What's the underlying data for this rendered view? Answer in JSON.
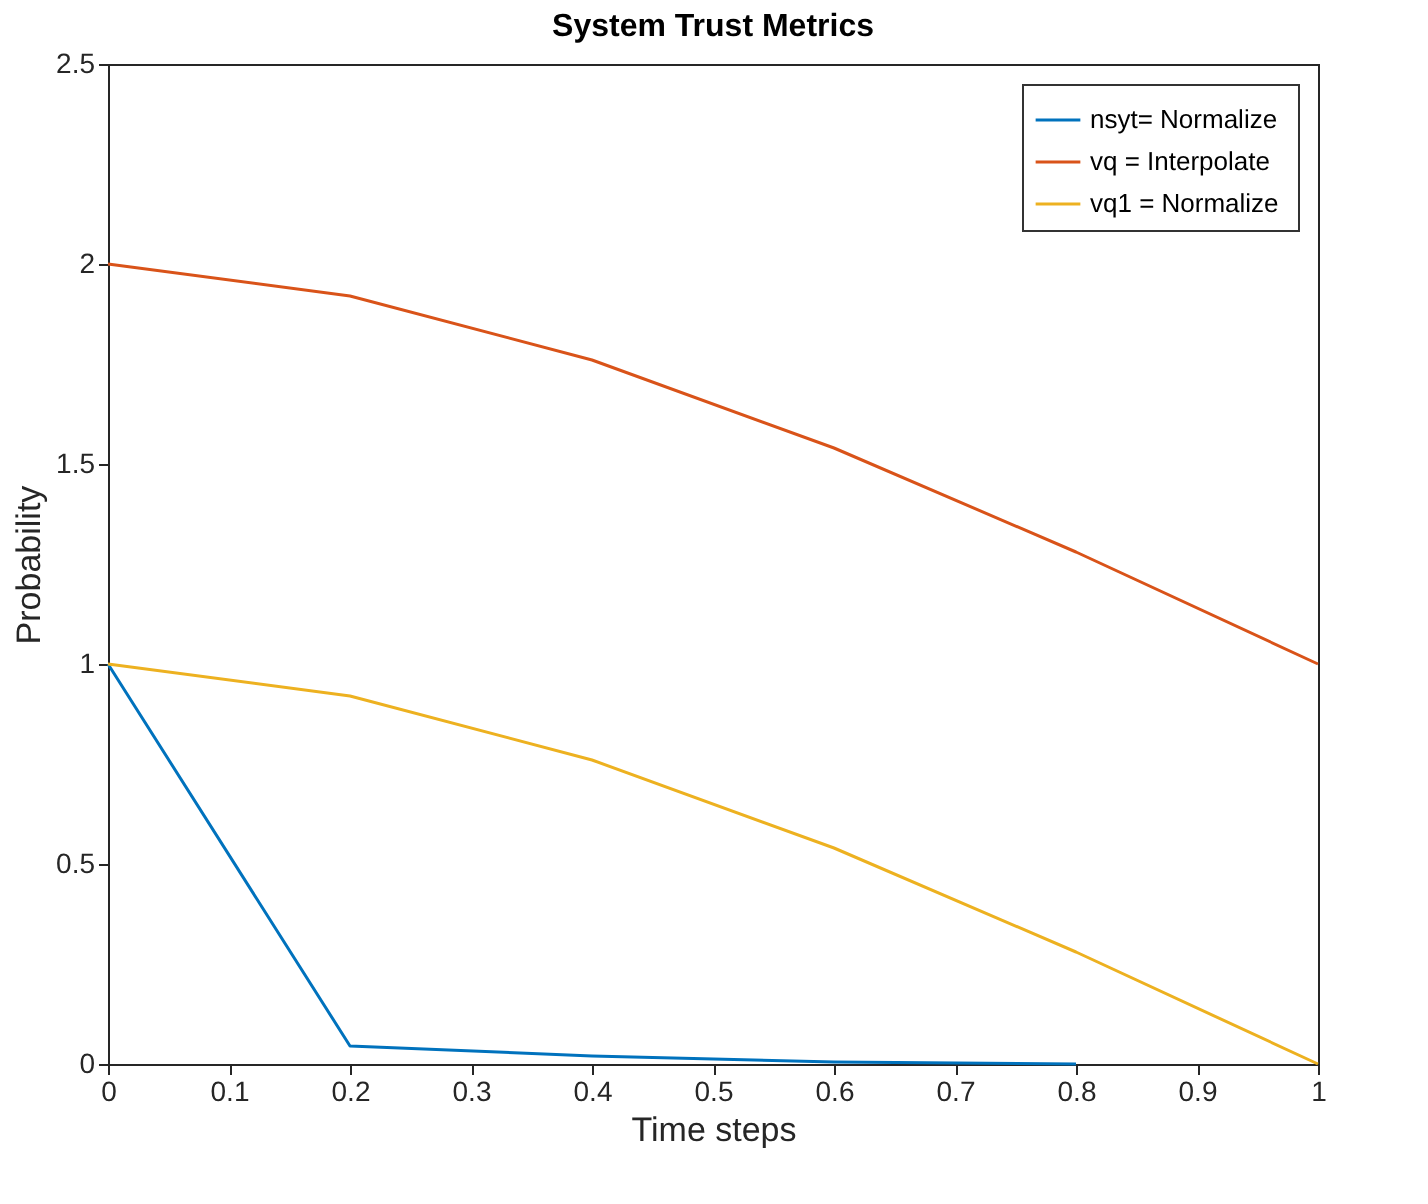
{
  "chart_data": {
    "type": "line",
    "title": "System Trust Metrics",
    "xlabel": "Time steps",
    "ylabel": "Probability",
    "x": [
      0,
      0.2,
      0.4,
      0.6,
      0.8,
      1
    ],
    "series": [
      {
        "name": "nsyt= Normalize",
        "color": "#0072bd",
        "values": [
          1,
          0.045,
          0.02,
          0.005,
          0,
          null
        ]
      },
      {
        "name": "vq = Interpolate",
        "color": "#d95319",
        "values": [
          2,
          1.92,
          1.76,
          1.54,
          1.28,
          1.0
        ]
      },
      {
        "name": "vq1 =  Normalize",
        "color": "#edb120",
        "values": [
          1,
          0.92,
          0.76,
          0.54,
          0.28,
          0
        ]
      }
    ],
    "xlim": [
      0,
      1
    ],
    "xticks": [
      0,
      0.1,
      0.2,
      0.3,
      0.4,
      0.5,
      0.6,
      0.7,
      0.8,
      0.9,
      1
    ],
    "ylim": [
      0,
      2.5
    ],
    "yticks": [
      0,
      0.5,
      1,
      1.5,
      2,
      2.5
    ],
    "grid": false,
    "legend": "top right",
    "marker": "none",
    "line_style": "solid"
  }
}
